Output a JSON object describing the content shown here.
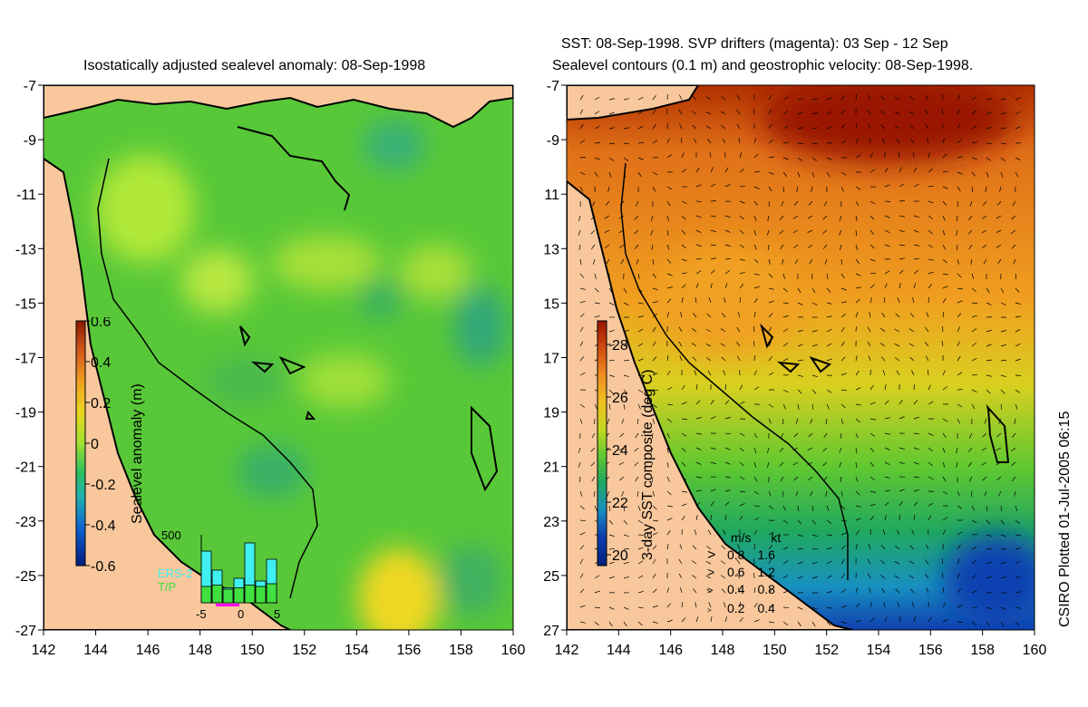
{
  "left_panel": {
    "title": "Isostatically adjusted sealevel anomaly: 08-Sep-1998",
    "colorbar": {
      "label": "Sealevel anomaly (m)",
      "ticks": [
        "0.6",
        "0.4",
        "0.2",
        "0",
        "-0.2",
        "-0.4",
        "-0.6"
      ],
      "colors": [
        "#8b1a00",
        "#d2571a",
        "#f0a020",
        "#e8d820",
        "#a0e030",
        "#2cc060",
        "#20b0b0",
        "#1060d0",
        "#001a80"
      ]
    },
    "inset": {
      "ymax_label": "500",
      "x_ticks": [
        "-5",
        "0",
        "5"
      ],
      "legend_ers": "ERS-2",
      "legend_tp": "T/P",
      "ers_color": "#40f0f0",
      "tp_color": "#40e040",
      "ers_values": [
        380,
        240,
        110,
        180,
        440,
        160,
        320
      ],
      "tp_values": [
        120,
        130,
        100,
        110,
        130,
        120,
        140
      ]
    },
    "colors": {
      "land": "#f8c89c",
      "sea_base": "#58c838",
      "sea_high": "#b0e838",
      "sea_low": "#38b060"
    }
  },
  "right_panel": {
    "title_line1": "SST: 08-Sep-1998. SVP drifters (magenta): 03 Sep - 12 Sep",
    "title_line2": "Sealevel contours (0.1 m) and geostrophic velocity: 08-Sep-1998.",
    "colorbar": {
      "label": "3-day SST composite (deg C)",
      "ticks": [
        "28",
        "26",
        "24",
        "22",
        "20"
      ],
      "colors": [
        "#9a1500",
        "#d24a10",
        "#f08c20",
        "#f0c020",
        "#c8d820",
        "#60c830",
        "#20a860",
        "#1890c0",
        "#1040b0",
        "#002080"
      ]
    },
    "velocity_legend": {
      "header_ms": "m/s",
      "header_kt": "kt",
      "rows": [
        {
          "ms": "0.8",
          "kt": "1.6"
        },
        {
          "ms": "0.6",
          "kt": "1.2"
        },
        {
          "ms": "0.4",
          "kt": "0.8"
        },
        {
          "ms": "0.2",
          "kt": "0.4"
        }
      ]
    },
    "colors": {
      "land": "#f8c89c"
    }
  },
  "axes": {
    "lat_ticks": [
      "-7",
      "-9",
      "-11",
      "-13",
      "-15",
      "-17",
      "-19",
      "-21",
      "-23",
      "-25",
      "-27"
    ],
    "lon_ticks": [
      "142",
      "144",
      "146",
      "148",
      "150",
      "152",
      "154",
      "156",
      "158",
      "160"
    ]
  },
  "footer": {
    "plotted": "CSIRO Plotted 01-Jul-2005 06:15"
  }
}
